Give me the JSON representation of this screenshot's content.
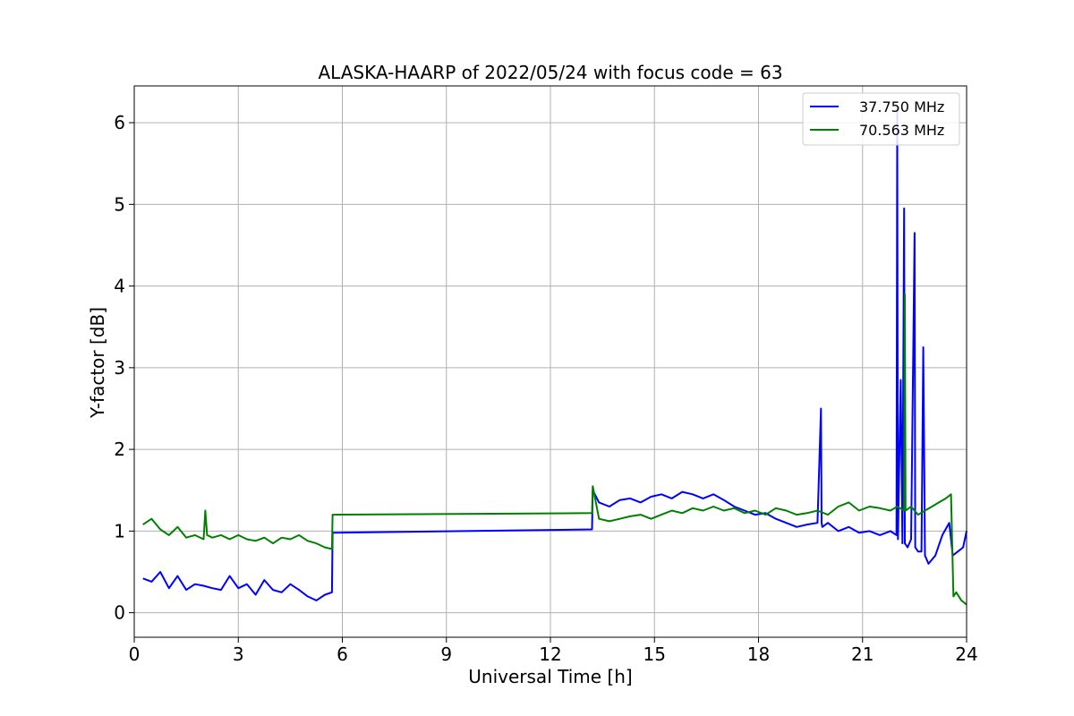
{
  "chart_data": {
    "type": "line",
    "title": "ALASKA-HAARP of 2022/05/24 with focus code = 63",
    "xlabel": "Universal Time [h]",
    "ylabel": "Y-factor [dB]",
    "xlim": [
      0,
      24
    ],
    "ylim": [
      -0.3,
      6.45
    ],
    "xticks": [
      0,
      3,
      6,
      9,
      12,
      15,
      18,
      21,
      24
    ],
    "yticks": [
      0,
      1,
      2,
      3,
      4,
      5,
      6
    ],
    "grid": true,
    "legend_position": "top-right",
    "series": [
      {
        "name": "37.750 MHz",
        "color": "#0000ff",
        "x": [
          0.25,
          0.5,
          0.75,
          1.0,
          1.25,
          1.5,
          1.75,
          2.0,
          2.25,
          2.5,
          2.75,
          3.0,
          3.25,
          3.5,
          3.75,
          4.0,
          4.25,
          4.5,
          4.75,
          5.0,
          5.25,
          5.5,
          5.7,
          5.72,
          13.2,
          13.22,
          13.4,
          13.7,
          14.0,
          14.3,
          14.6,
          14.9,
          15.2,
          15.5,
          15.8,
          16.1,
          16.4,
          16.7,
          17.0,
          17.3,
          17.6,
          17.9,
          18.2,
          18.5,
          18.8,
          19.1,
          19.4,
          19.7,
          19.8,
          19.82,
          19.84,
          20.0,
          20.3,
          20.6,
          20.9,
          21.2,
          21.5,
          21.8,
          21.98,
          22.0,
          22.02,
          22.1,
          22.15,
          22.2,
          22.22,
          22.3,
          22.4,
          22.5,
          22.52,
          22.6,
          22.7,
          22.75,
          22.8,
          22.9,
          23.1,
          23.3,
          23.5,
          23.6,
          23.75,
          23.9,
          24.0
        ],
        "y": [
          0.42,
          0.38,
          0.5,
          0.3,
          0.45,
          0.28,
          0.35,
          0.33,
          0.3,
          0.28,
          0.45,
          0.3,
          0.35,
          0.22,
          0.4,
          0.28,
          0.25,
          0.35,
          0.28,
          0.2,
          0.15,
          0.22,
          0.25,
          0.98,
          1.02,
          1.5,
          1.35,
          1.3,
          1.38,
          1.4,
          1.35,
          1.42,
          1.45,
          1.4,
          1.48,
          1.45,
          1.4,
          1.45,
          1.38,
          1.3,
          1.25,
          1.2,
          1.22,
          1.15,
          1.1,
          1.05,
          1.08,
          1.1,
          2.5,
          1.1,
          1.05,
          1.1,
          1.0,
          1.05,
          0.98,
          1.0,
          0.95,
          1.0,
          0.95,
          6.2,
          0.9,
          2.85,
          0.85,
          4.95,
          0.85,
          0.8,
          0.9,
          4.65,
          0.8,
          0.75,
          0.75,
          3.25,
          0.7,
          0.6,
          0.7,
          0.95,
          1.1,
          0.7,
          0.75,
          0.8,
          1.0
        ]
      },
      {
        "name": "70.563 MHz",
        "color": "#008000",
        "x": [
          0.25,
          0.5,
          0.75,
          1.0,
          1.25,
          1.5,
          1.75,
          2.0,
          2.05,
          2.1,
          2.25,
          2.5,
          2.75,
          3.0,
          3.25,
          3.5,
          3.75,
          4.0,
          4.25,
          4.5,
          4.75,
          5.0,
          5.25,
          5.5,
          5.7,
          5.72,
          13.2,
          13.22,
          13.4,
          13.7,
          14.0,
          14.3,
          14.6,
          14.9,
          15.2,
          15.5,
          15.8,
          16.1,
          16.4,
          16.7,
          17.0,
          17.3,
          17.6,
          17.9,
          18.2,
          18.5,
          18.8,
          19.1,
          19.4,
          19.7,
          20.0,
          20.3,
          20.6,
          20.9,
          21.2,
          21.5,
          21.8,
          22.0,
          22.2,
          22.22,
          22.24,
          22.4,
          22.6,
          22.8,
          23.0,
          23.2,
          23.4,
          23.55,
          23.62,
          23.7,
          23.85,
          24.0
        ],
        "y": [
          1.08,
          1.15,
          1.02,
          0.95,
          1.05,
          0.92,
          0.95,
          0.9,
          1.25,
          0.95,
          0.92,
          0.95,
          0.9,
          0.95,
          0.9,
          0.88,
          0.92,
          0.85,
          0.92,
          0.9,
          0.95,
          0.88,
          0.85,
          0.8,
          0.78,
          1.2,
          1.22,
          1.55,
          1.15,
          1.12,
          1.15,
          1.18,
          1.2,
          1.15,
          1.2,
          1.25,
          1.22,
          1.28,
          1.25,
          1.3,
          1.25,
          1.28,
          1.22,
          1.25,
          1.2,
          1.28,
          1.25,
          1.2,
          1.22,
          1.25,
          1.2,
          1.3,
          1.35,
          1.25,
          1.3,
          1.28,
          1.25,
          1.3,
          1.25,
          3.9,
          1.25,
          1.3,
          1.2,
          1.25,
          1.3,
          1.35,
          1.4,
          1.45,
          0.2,
          0.25,
          0.15,
          0.1
        ]
      }
    ]
  }
}
